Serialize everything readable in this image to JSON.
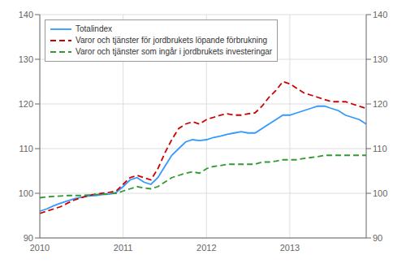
{
  "chart_data": {
    "type": "line",
    "categories": [
      "2010",
      null,
      null,
      null,
      null,
      null,
      null,
      null,
      null,
      null,
      null,
      null,
      "2011",
      null,
      null,
      null,
      null,
      null,
      null,
      null,
      null,
      null,
      null,
      null,
      "2012",
      null,
      null,
      null,
      null,
      null,
      null,
      null,
      null,
      null,
      null,
      null,
      "2013",
      null,
      null,
      null,
      null,
      null,
      null,
      null,
      null,
      null,
      null,
      null
    ],
    "series": [
      {
        "name": "Totalindex",
        "color": "#3399ff",
        "line_style": "solid",
        "values": [
          96.0,
          96.5,
          97.2,
          97.8,
          98.3,
          98.8,
          99.1,
          99.4,
          99.5,
          99.7,
          99.8,
          100.2,
          101.5,
          103.0,
          103.5,
          102.5,
          102.0,
          103.5,
          106.0,
          108.5,
          110.0,
          111.5,
          112.0,
          111.8,
          112.0,
          112.5,
          112.8,
          113.2,
          113.5,
          113.8,
          113.5,
          113.5,
          114.5,
          115.5,
          116.5,
          117.5,
          117.5,
          118.0,
          118.5,
          119.0,
          119.5,
          119.5,
          119.0,
          118.5,
          117.5,
          117.0,
          116.5,
          115.5
        ]
      },
      {
        "name": "Varor och tjänster för jordbrukets löpande förbrukning",
        "color": "#cc0000",
        "line_style": "dashed",
        "values": [
          95.5,
          96.0,
          96.5,
          97.0,
          97.8,
          98.5,
          99.0,
          99.5,
          99.8,
          100.0,
          100.2,
          100.5,
          102.0,
          103.5,
          104.0,
          103.5,
          103.0,
          105.5,
          109.0,
          112.0,
          114.5,
          115.5,
          116.0,
          115.5,
          116.5,
          117.0,
          117.5,
          117.8,
          117.5,
          117.5,
          117.8,
          118.0,
          119.5,
          121.5,
          123.0,
          125.0,
          124.5,
          123.5,
          122.5,
          122.0,
          121.5,
          121.0,
          120.5,
          120.5,
          120.5,
          120.0,
          119.5,
          119.0
        ]
      },
      {
        "name": "Varor och tjänster som ingår i jordbrukets investeringar",
        "color": "#339933",
        "line_style": "dashed",
        "values": [
          99.0,
          99.2,
          99.3,
          99.4,
          99.5,
          99.5,
          99.5,
          99.6,
          99.7,
          99.8,
          99.9,
          100.0,
          100.5,
          101.0,
          101.5,
          101.2,
          101.0,
          101.5,
          102.5,
          103.5,
          104.0,
          104.5,
          104.8,
          104.5,
          105.5,
          106.0,
          106.2,
          106.5,
          106.5,
          106.5,
          106.5,
          106.5,
          107.0,
          107.0,
          107.2,
          107.5,
          107.5,
          107.5,
          107.8,
          108.0,
          108.2,
          108.5,
          108.5,
          108.5,
          108.5,
          108.5,
          108.5,
          108.5
        ]
      }
    ],
    "ylim": [
      90,
      140
    ],
    "yticks": [
      90,
      100,
      110,
      120,
      130,
      140
    ],
    "y2lim": [
      90,
      140
    ],
    "y2ticks": [
      90,
      100,
      110,
      120,
      130,
      140
    ],
    "grid": true,
    "legend": "upper left"
  }
}
